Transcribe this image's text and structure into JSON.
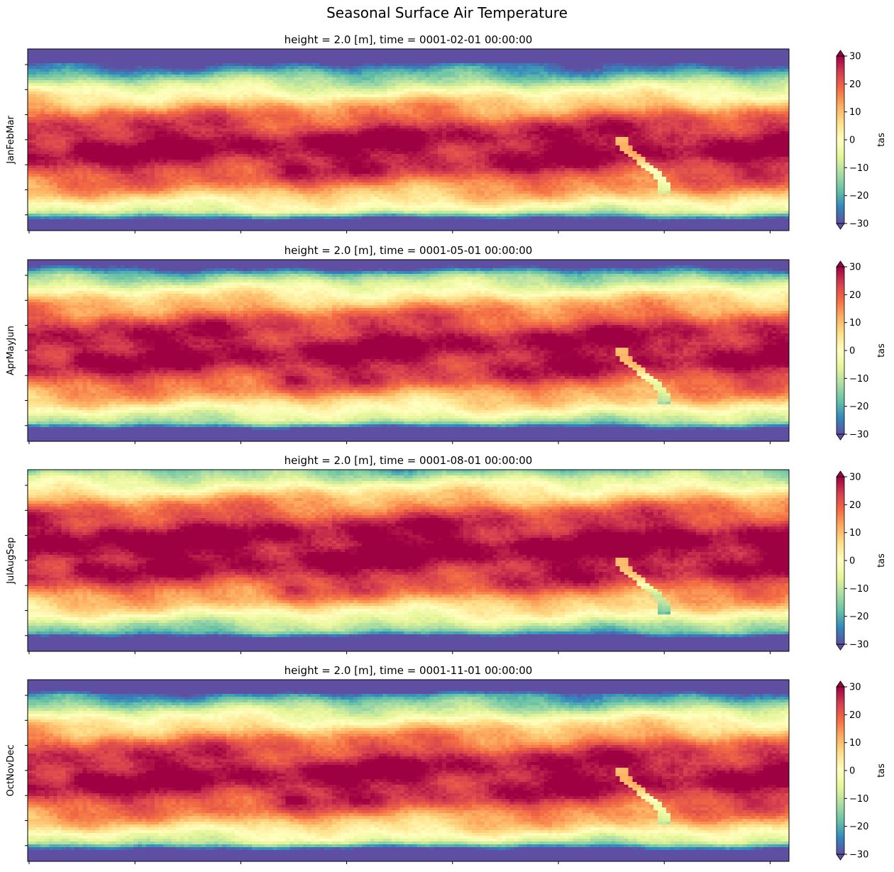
{
  "figure": {
    "title": "Seasonal Surface Air Temperature"
  },
  "chart_data": [
    {
      "type": "heatmap",
      "title": "height = 2.0 [m], time = 0001-02-01 00:00:00",
      "ylabel": "JanFebMar",
      "colorbar_label": "tas",
      "colorbar_ticks": [
        "30",
        "20",
        "10",
        "0",
        "−10",
        "−20",
        "−30"
      ],
      "vmin": -30,
      "vmax": 30,
      "colormap": "Spectral_r",
      "season_shift": 0
    },
    {
      "type": "heatmap",
      "title": "height = 2.0 [m], time = 0001-05-01 00:00:00",
      "ylabel": "AprMayJun",
      "colorbar_label": "tas",
      "colorbar_ticks": [
        "30",
        "20",
        "10",
        "0",
        "−10",
        "−20",
        "−30"
      ],
      "vmin": -30,
      "vmax": 30,
      "colormap": "Spectral_r",
      "season_shift": 0.5
    },
    {
      "type": "heatmap",
      "title": "height = 2.0 [m], time = 0001-08-01 00:00:00",
      "ylabel": "JulAugSep",
      "colorbar_label": "tas",
      "colorbar_ticks": [
        "30",
        "20",
        "10",
        "0",
        "−10",
        "−20",
        "−30"
      ],
      "vmin": -30,
      "vmax": 30,
      "colormap": "Spectral_r",
      "season_shift": 1
    },
    {
      "type": "heatmap",
      "title": "height = 2.0 [m], time = 0001-11-01 00:00:00",
      "ylabel": "OctNovDec",
      "colorbar_label": "tas",
      "colorbar_ticks": [
        "30",
        "20",
        "10",
        "0",
        "−10",
        "−20",
        "−30"
      ],
      "vmin": -30,
      "vmax": 30,
      "colormap": "Spectral_r",
      "season_shift": 0.2
    }
  ],
  "colors": {
    "colormap_stops": [
      "#5e4fa2",
      "#3288bd",
      "#66c2a5",
      "#abdda4",
      "#e6f598",
      "#ffffbf",
      "#fee08b",
      "#fdae61",
      "#f46d43",
      "#d53e4f",
      "#9e0142"
    ]
  }
}
